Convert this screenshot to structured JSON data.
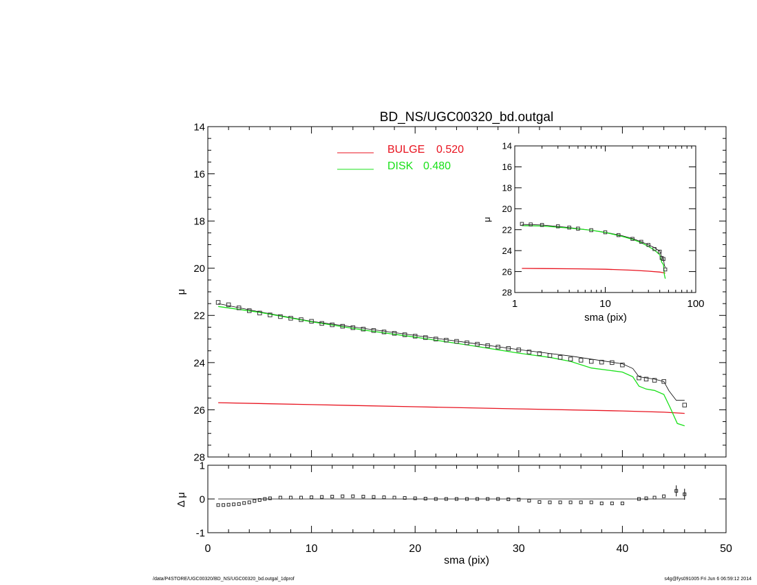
{
  "chart_data": [
    {
      "type": "scatter",
      "panel": "main",
      "title": "BD_NS/UGC00320_bd.outgal",
      "xlabel": "",
      "ylabel": "μ",
      "xlim": [
        0,
        50
      ],
      "ylim": [
        28,
        14
      ],
      "y_inverted": true,
      "yticks": [
        14,
        16,
        18,
        20,
        22,
        24,
        26,
        28
      ],
      "legend": {
        "placement": "top-center",
        "entries": [
          {
            "label": "BULGE",
            "value": "0.520",
            "color": "#e8121e"
          },
          {
            "label": "DISK",
            "value": "0.480",
            "color": "#18e018"
          }
        ]
      },
      "series": [
        {
          "name": "data",
          "style": "squares",
          "x": [
            1,
            2,
            3,
            4,
            5,
            6,
            7,
            8,
            9,
            10,
            11,
            12,
            13,
            14,
            15,
            16,
            17,
            18,
            19,
            20,
            21,
            22,
            23,
            24,
            25,
            26,
            27,
            28,
            29,
            30,
            31,
            32,
            33,
            34,
            35,
            36,
            37,
            38,
            39,
            40,
            41.6,
            42.3,
            43.1,
            44,
            46
          ],
          "y": [
            21.45,
            21.55,
            21.68,
            21.8,
            21.9,
            21.98,
            22.05,
            22.12,
            22.18,
            22.25,
            22.34,
            22.4,
            22.46,
            22.52,
            22.58,
            22.64,
            22.7,
            22.76,
            22.82,
            22.88,
            22.94,
            23.0,
            23.05,
            23.1,
            23.16,
            23.22,
            23.28,
            23.34,
            23.4,
            23.46,
            23.55,
            23.62,
            23.7,
            23.78,
            23.85,
            23.9,
            23.95,
            23.98,
            24.0,
            24.1,
            24.65,
            24.7,
            24.75,
            24.8,
            25.8
          ]
        },
        {
          "name": "model",
          "style": "line",
          "color": "#000000",
          "x": [
            1,
            5,
            10,
            15,
            20,
            25,
            30,
            35,
            40,
            41,
            41.6,
            42.3,
            43.1,
            44,
            44.5,
            45.2,
            46
          ],
          "y": [
            21.5,
            21.85,
            22.25,
            22.55,
            22.85,
            23.15,
            23.45,
            23.72,
            24.05,
            24.25,
            24.6,
            24.65,
            24.7,
            24.8,
            25.2,
            25.6,
            25.6
          ]
        },
        {
          "name": "BULGE",
          "style": "line",
          "color": "#e8121e",
          "x": [
            1,
            10,
            20,
            30,
            40,
            44,
            46
          ],
          "y": [
            25.7,
            25.78,
            25.87,
            25.96,
            26.05,
            26.1,
            26.15
          ]
        },
        {
          "name": "DISK",
          "style": "line",
          "color": "#18e018",
          "x": [
            1,
            5,
            10,
            15,
            20,
            25,
            30,
            33,
            35,
            37,
            40,
            41,
            41.6,
            42.3,
            43.1,
            44,
            44.6,
            45.3,
            46
          ],
          "y": [
            21.62,
            21.87,
            22.27,
            22.62,
            22.92,
            23.25,
            23.6,
            23.78,
            23.95,
            24.23,
            24.4,
            24.6,
            25.0,
            25.12,
            25.18,
            25.35,
            25.9,
            26.58,
            26.68
          ]
        }
      ]
    },
    {
      "type": "scatter",
      "panel": "inset",
      "xlabel": "sma (pix)",
      "ylabel": "μ",
      "xscale": "log",
      "xlim": [
        1,
        100
      ],
      "ylim": [
        28,
        14
      ],
      "y_inverted": true,
      "xticks": [
        1,
        10,
        100
      ],
      "yticks": [
        14,
        16,
        18,
        20,
        22,
        24,
        26,
        28
      ],
      "series": [
        {
          "name": "data",
          "style": "squares",
          "x": [
            1.2,
            1.5,
            2,
            3,
            4,
            5,
            7,
            10,
            14,
            20,
            25,
            30,
            35,
            40,
            42,
            44,
            46
          ],
          "y": [
            21.45,
            21.5,
            21.55,
            21.68,
            21.8,
            21.9,
            22.05,
            22.25,
            22.52,
            22.88,
            23.16,
            23.46,
            23.85,
            24.1,
            24.7,
            24.8,
            25.8
          ]
        },
        {
          "name": "model",
          "style": "line",
          "color": "#000000",
          "x": [
            1.2,
            2,
            4,
            7,
            10,
            15,
            20,
            25,
            30,
            35,
            40,
            42,
            44,
            45,
            46
          ],
          "y": [
            21.5,
            21.55,
            21.8,
            22.05,
            22.25,
            22.55,
            22.85,
            23.15,
            23.45,
            23.72,
            24.05,
            24.6,
            24.8,
            25.4,
            25.6
          ]
        },
        {
          "name": "BULGE",
          "style": "line",
          "color": "#e8121e",
          "x": [
            1.2,
            2,
            5,
            10,
            20,
            30,
            40,
            46
          ],
          "y": [
            25.7,
            25.71,
            25.74,
            25.78,
            25.87,
            25.96,
            26.05,
            26.15
          ]
        },
        {
          "name": "DISK",
          "style": "line",
          "color": "#18e018",
          "x": [
            1.2,
            2,
            4,
            7,
            10,
            15,
            20,
            25,
            30,
            35,
            40,
            42,
            44,
            45,
            46
          ],
          "y": [
            21.62,
            21.65,
            21.85,
            22.05,
            22.27,
            22.62,
            22.92,
            23.25,
            23.6,
            23.95,
            24.4,
            25.1,
            25.35,
            26.3,
            26.68
          ]
        }
      ]
    },
    {
      "type": "scatter",
      "panel": "residual",
      "xlabel": "sma (pix)",
      "ylabel": "Δ μ",
      "xlim": [
        0,
        50
      ],
      "ylim": [
        -1,
        1
      ],
      "xticks": [
        0,
        10,
        20,
        30,
        40,
        50
      ],
      "yticks": [
        -1,
        0,
        1
      ],
      "reference_line": 0,
      "series": [
        {
          "name": "residual",
          "style": "squares",
          "x": [
            1,
            1.5,
            2,
            2.5,
            3,
            3.5,
            4,
            4.5,
            5,
            5.5,
            6,
            7,
            8,
            9,
            10,
            11,
            12,
            13,
            14,
            15,
            16,
            17,
            18,
            19,
            20,
            21,
            22,
            23,
            24,
            25,
            26,
            27,
            28,
            29,
            30,
            31,
            32,
            33,
            34,
            35,
            36,
            37,
            38,
            39,
            40,
            41.6,
            42.3,
            43.1,
            44,
            45.2,
            46
          ],
          "y": [
            -0.18,
            -0.18,
            -0.17,
            -0.16,
            -0.15,
            -0.12,
            -0.1,
            -0.06,
            -0.03,
            0.0,
            0.02,
            0.04,
            0.04,
            0.04,
            0.05,
            0.06,
            0.07,
            0.08,
            0.08,
            0.07,
            0.06,
            0.05,
            0.04,
            0.03,
            0.02,
            0.01,
            0.0,
            0.0,
            0.0,
            0.0,
            0.0,
            0.0,
            0.0,
            -0.01,
            -0.02,
            -0.05,
            -0.09,
            -0.1,
            -0.1,
            -0.1,
            -0.1,
            -0.1,
            -0.13,
            -0.13,
            -0.13,
            0.0,
            0.02,
            0.04,
            0.08,
            0.24,
            0.14
          ]
        }
      ]
    }
  ],
  "footer": {
    "left": "/data/P4STORE/UGC00320/BD_NS/UGC00320_bd.outgal_1dprof",
    "right": "s4g@fys091005  Fri Jun  6 06:59:12 2014"
  }
}
